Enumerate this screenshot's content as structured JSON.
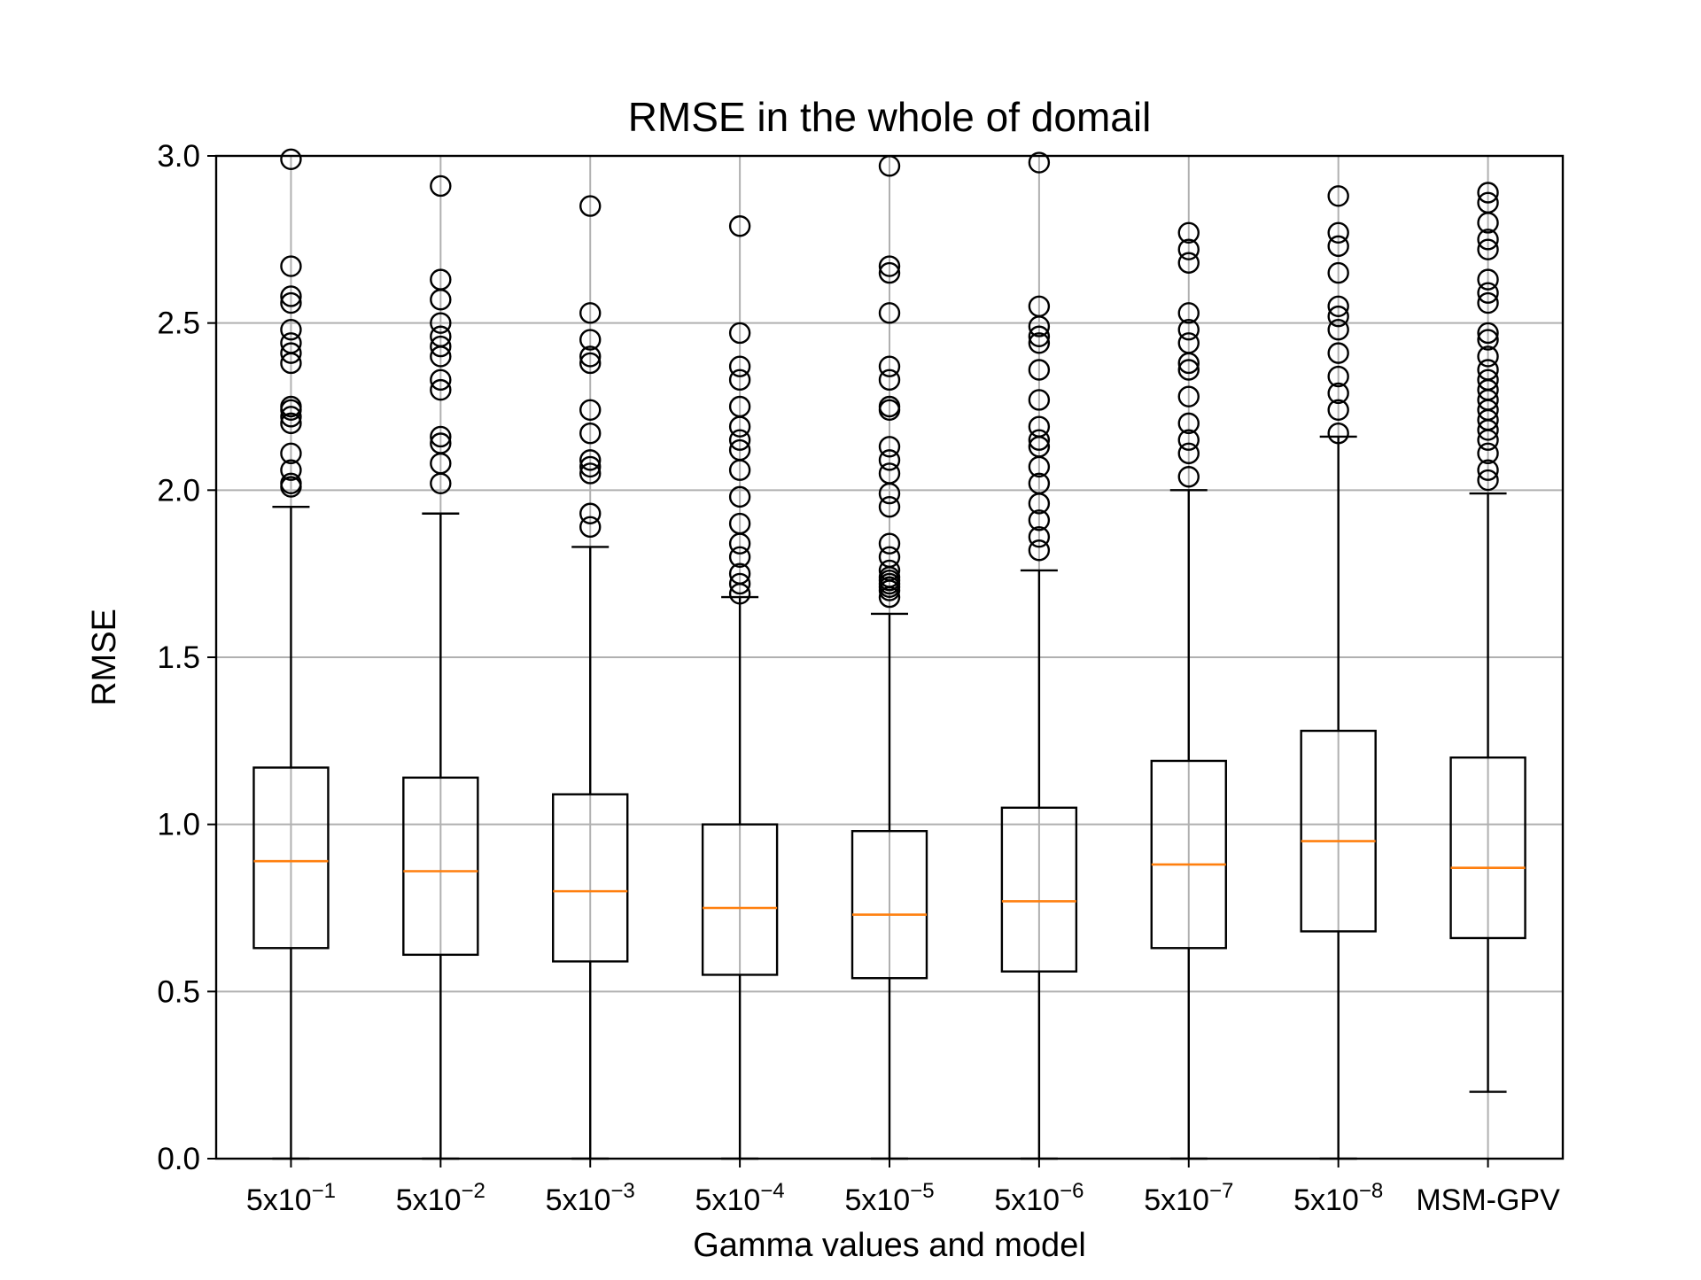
{
  "chart_data": {
    "type": "boxplot",
    "title": "RMSE in the whole of domail",
    "xlabel": "Gamma values and model",
    "ylabel": "RMSE",
    "ylim": [
      0.0,
      3.0
    ],
    "yticks": [
      "0.0",
      "0.5",
      "1.0",
      "1.5",
      "2.0",
      "2.5",
      "3.0"
    ],
    "grid": true,
    "colors": {
      "box": "#000000",
      "median": "#ff7f0e",
      "grid": "#b0b0b0"
    },
    "categories": [
      {
        "base": "5x10",
        "exp": "−1"
      },
      {
        "base": "5x10",
        "exp": "−2"
      },
      {
        "base": "5x10",
        "exp": "−3"
      },
      {
        "base": "5x10",
        "exp": "−4"
      },
      {
        "base": "5x10",
        "exp": "−5"
      },
      {
        "base": "5x10",
        "exp": "−6"
      },
      {
        "base": "5x10",
        "exp": "−7"
      },
      {
        "base": "5x10",
        "exp": "−8"
      },
      {
        "base": "MSM-GPV",
        "exp": ""
      }
    ],
    "boxes": [
      {
        "whisker_low": 0.0,
        "q1": 0.63,
        "median": 0.89,
        "q3": 1.17,
        "whisker_high": 1.95,
        "outliers": [
          2.01,
          2.02,
          2.06,
          2.11,
          2.2,
          2.22,
          2.24,
          2.25,
          2.38,
          2.41,
          2.44,
          2.48,
          2.56,
          2.58,
          2.67,
          2.99
        ]
      },
      {
        "whisker_low": 0.0,
        "q1": 0.61,
        "median": 0.86,
        "q3": 1.14,
        "whisker_high": 1.93,
        "outliers": [
          2.02,
          2.08,
          2.14,
          2.16,
          2.3,
          2.33,
          2.4,
          2.43,
          2.46,
          2.5,
          2.57,
          2.63,
          2.91
        ]
      },
      {
        "whisker_low": 0.0,
        "q1": 0.59,
        "median": 0.8,
        "q3": 1.09,
        "whisker_high": 1.83,
        "outliers": [
          1.89,
          1.93,
          2.05,
          2.07,
          2.09,
          2.17,
          2.24,
          2.38,
          2.4,
          2.45,
          2.53,
          2.85
        ]
      },
      {
        "whisker_low": 0.0,
        "q1": 0.55,
        "median": 0.75,
        "q3": 1.0,
        "whisker_high": 1.68,
        "outliers": [
          1.69,
          1.72,
          1.75,
          1.8,
          1.84,
          1.9,
          1.98,
          2.06,
          2.12,
          2.15,
          2.19,
          2.25,
          2.33,
          2.37,
          2.47,
          2.79
        ]
      },
      {
        "whisker_low": 0.0,
        "q1": 0.54,
        "median": 0.73,
        "q3": 0.98,
        "whisker_high": 1.63,
        "outliers": [
          1.68,
          1.7,
          1.71,
          1.72,
          1.73,
          1.74,
          1.76,
          1.8,
          1.84,
          1.95,
          1.99,
          2.05,
          2.09,
          2.13,
          2.24,
          2.25,
          2.33,
          2.37,
          2.53,
          2.65,
          2.67,
          2.97
        ]
      },
      {
        "whisker_low": 0.0,
        "q1": 0.56,
        "median": 0.77,
        "q3": 1.05,
        "whisker_high": 1.76,
        "outliers": [
          1.82,
          1.86,
          1.91,
          1.96,
          2.02,
          2.07,
          2.13,
          2.15,
          2.19,
          2.27,
          2.36,
          2.44,
          2.46,
          2.49,
          2.55,
          2.98
        ]
      },
      {
        "whisker_low": 0.0,
        "q1": 0.63,
        "median": 0.88,
        "q3": 1.19,
        "whisker_high": 2.0,
        "outliers": [
          2.04,
          2.11,
          2.15,
          2.2,
          2.28,
          2.36,
          2.38,
          2.44,
          2.48,
          2.53,
          2.68,
          2.72,
          2.77
        ]
      },
      {
        "whisker_low": 0.0,
        "q1": 0.68,
        "median": 0.95,
        "q3": 1.28,
        "whisker_high": 2.16,
        "outliers": [
          2.17,
          2.24,
          2.29,
          2.34,
          2.41,
          2.48,
          2.52,
          2.55,
          2.65,
          2.73,
          2.77,
          2.88
        ]
      },
      {
        "whisker_low": 0.2,
        "q1": 0.66,
        "median": 0.87,
        "q3": 1.2,
        "whisker_high": 1.99,
        "outliers": [
          2.03,
          2.06,
          2.11,
          2.15,
          2.18,
          2.21,
          2.24,
          2.27,
          2.3,
          2.33,
          2.36,
          2.4,
          2.45,
          2.47,
          2.56,
          2.59,
          2.63,
          2.72,
          2.75,
          2.8,
          2.86,
          2.89
        ]
      }
    ]
  }
}
